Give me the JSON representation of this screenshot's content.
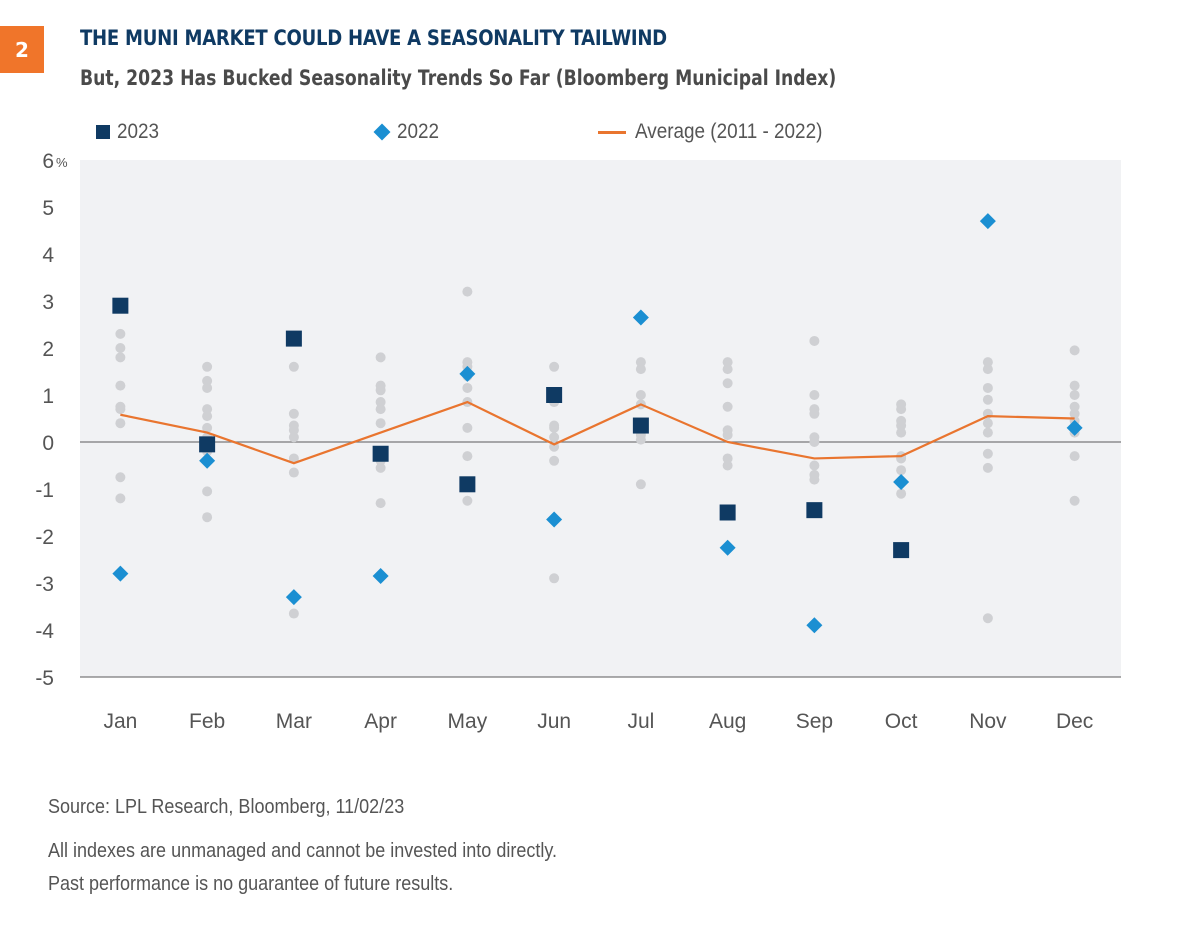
{
  "badge": "2",
  "title": "THE MUNI MARKET COULD HAVE A SEASONALITY TAILWIND",
  "subtitle": "But, 2023 Has Bucked Seasonality Trends So Far (Bloomberg Municipal Index)",
  "legend": {
    "s2023": "2023",
    "s2022": "2022",
    "avg": "Average (2011 - 2022)"
  },
  "colors": {
    "badge": "#f0752a",
    "title": "#0f3a63",
    "s2023": "#0f3a63",
    "s2022": "#1b8fd2",
    "avg": "#e9752f",
    "history": "#cfd0d3",
    "plot_bg": "#f1f2f4"
  },
  "footer": {
    "source": "Source: LPL Research, Bloomberg,  11/02/23",
    "disclaimer1": "All indexes are unmanaged and cannot be invested into directly.",
    "disclaimer2": "Past performance is no guarantee of future results."
  },
  "chart_data": {
    "type": "scatter",
    "title": "THE MUNI MARKET COULD HAVE A SEASONALITY TAILWIND",
    "subtitle": "But, 2023 Has Bucked Seasonality Trends So Far (Bloomberg Municipal Index)",
    "xlabel": "",
    "ylabel": "",
    "categories": [
      "Jan",
      "Feb",
      "Mar",
      "Apr",
      "May",
      "Jun",
      "Jul",
      "Aug",
      "Sep",
      "Oct",
      "Nov",
      "Dec"
    ],
    "ylim": [
      -5,
      6
    ],
    "yticks": [
      6,
      5,
      4,
      3,
      2,
      1,
      0,
      -1,
      -2,
      -3,
      -4,
      -5
    ],
    "ytick_labels": [
      "6",
      "5",
      "4",
      "3",
      "2",
      "1",
      "0",
      "-1",
      "-2",
      "-3",
      "-4",
      "-5"
    ],
    "ytick_suffix_top": "%",
    "legend_position": "top",
    "series": [
      {
        "name": "2023",
        "marker": "square",
        "values": [
          2.9,
          -0.05,
          2.2,
          -0.25,
          -0.9,
          1.0,
          0.35,
          -1.5,
          -1.45,
          -2.3,
          null,
          null
        ]
      },
      {
        "name": "2022",
        "marker": "diamond",
        "values": [
          -2.8,
          -0.4,
          -3.3,
          -2.85,
          1.45,
          -1.65,
          2.65,
          -2.25,
          -3.9,
          -0.85,
          4.7,
          0.3
        ]
      },
      {
        "name": "Average (2011 - 2022)",
        "marker": "line",
        "values": [
          0.58,
          0.2,
          -0.45,
          0.2,
          0.85,
          -0.05,
          0.8,
          0.0,
          -0.35,
          -0.3,
          0.55,
          0.5
        ]
      }
    ],
    "history_points": [
      [
        2.3,
        2.0,
        1.8,
        1.2,
        0.75,
        0.7,
        0.4,
        -0.75,
        -1.2
      ],
      [
        1.6,
        1.3,
        1.15,
        0.7,
        0.55,
        0.3,
        0.1,
        -0.2,
        -1.05,
        -1.6
      ],
      [
        1.6,
        0.6,
        0.35,
        0.25,
        0.1,
        -0.35,
        -0.65,
        -3.65
      ],
      [
        1.8,
        1.2,
        1.1,
        0.85,
        0.7,
        0.4,
        -0.4,
        -0.55,
        -1.3
      ],
      [
        3.2,
        1.7,
        1.6,
        1.4,
        1.15,
        0.85,
        0.3,
        -0.3,
        -1.25
      ],
      [
        1.6,
        0.85,
        0.35,
        0.3,
        0.1,
        -0.1,
        -0.4,
        -2.9
      ],
      [
        1.7,
        1.55,
        1.0,
        0.8,
        0.25,
        0.15,
        0.05,
        -0.9
      ],
      [
        1.7,
        1.55,
        1.25,
        0.75,
        0.25,
        0.15,
        -0.35,
        -0.5,
        -1.5
      ],
      [
        2.15,
        1.0,
        0.7,
        0.6,
        0.1,
        0.0,
        -0.5,
        -0.7,
        -0.8
      ],
      [
        0.8,
        0.7,
        0.45,
        0.35,
        0.2,
        -0.3,
        -0.35,
        -0.6,
        -1.1
      ],
      [
        1.7,
        1.55,
        1.15,
        0.9,
        0.6,
        0.4,
        0.2,
        -0.25,
        -0.55,
        -3.75
      ],
      [
        1.95,
        1.2,
        1.0,
        0.75,
        0.6,
        0.45,
        0.2,
        -0.3,
        -1.25
      ]
    ]
  }
}
